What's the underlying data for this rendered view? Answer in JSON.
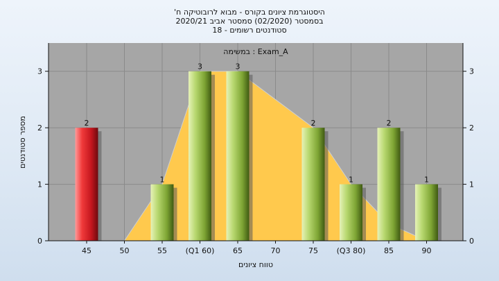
{
  "titles": [
    "'היסטוגרמת ציונים בקורס - מבוא לרובוטיקה ח",
    "2020/21 בסמסטר  (02/2020)  סמסטר אביב",
    "סטודנטים רשומים - 18"
  ],
  "chart_data": {
    "type": "bar",
    "categories": [
      "45",
      "50",
      "55",
      "(Q1 60)",
      "65",
      "70",
      "75",
      "(Q3 80)",
      "85",
      "90"
    ],
    "values": [
      2,
      0,
      1,
      3,
      3,
      0,
      2,
      1,
      2,
      1
    ],
    "value_labels": [
      "2",
      "",
      "1",
      "3",
      "3",
      "",
      "2",
      "1",
      "2",
      "1"
    ],
    "bar_colors": [
      "#c8202a",
      null,
      "#8fb844",
      "#8fb844",
      "#8fb844",
      null,
      "#8fb844",
      "#8fb844",
      "#8fb844",
      "#8fb844"
    ],
    "area_series": [
      0,
      0,
      1,
      3,
      3,
      2.5,
      2,
      1,
      0.3,
      0
    ],
    "area_color": "#ffc94d",
    "plot_label": "במשימה : Exam_A",
    "xlabel": "טווח ציונים",
    "ylabel": "מספר סטודנטים",
    "ylim": [
      0,
      3.5
    ],
    "yticks": [
      "0",
      "1",
      "2",
      "3"
    ],
    "grid": true,
    "plot_background": "#a6a6a6"
  }
}
